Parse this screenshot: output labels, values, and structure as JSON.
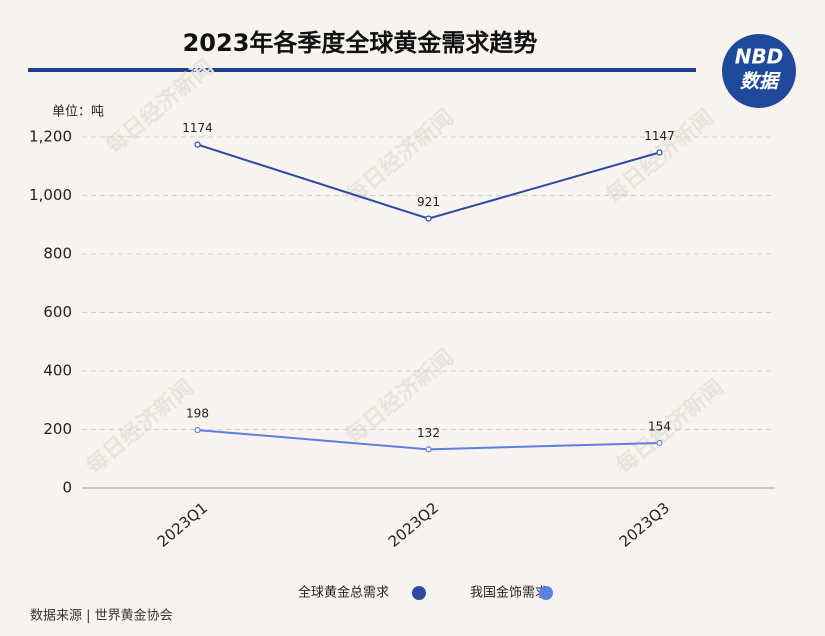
{
  "chart_data": {
    "type": "line",
    "title": "2023年各季度全球黄金需求趋势",
    "unit": "单位：吨",
    "source": "数据来源 | 世界黄金协会",
    "logo": {
      "top": "NBD",
      "bottom": "数据"
    },
    "watermark": "每日经济新闻",
    "categories": [
      "2023Q1",
      "2023Q2",
      "2023Q3"
    ],
    "series": [
      {
        "name": "全球黄金总需求",
        "color": "#2b4aa0",
        "values": [
          1174,
          921,
          1147
        ]
      },
      {
        "name": "我国金饰需求",
        "color": "#5b80e2",
        "values": [
          198,
          132,
          154
        ]
      }
    ],
    "ylim": [
      0,
      1200
    ],
    "yticks": [
      0,
      200,
      400,
      600,
      800,
      {
        "value": 1000,
        "label": "1,000"
      },
      {
        "value": 1200,
        "label": "1,200"
      }
    ],
    "grid": true
  }
}
